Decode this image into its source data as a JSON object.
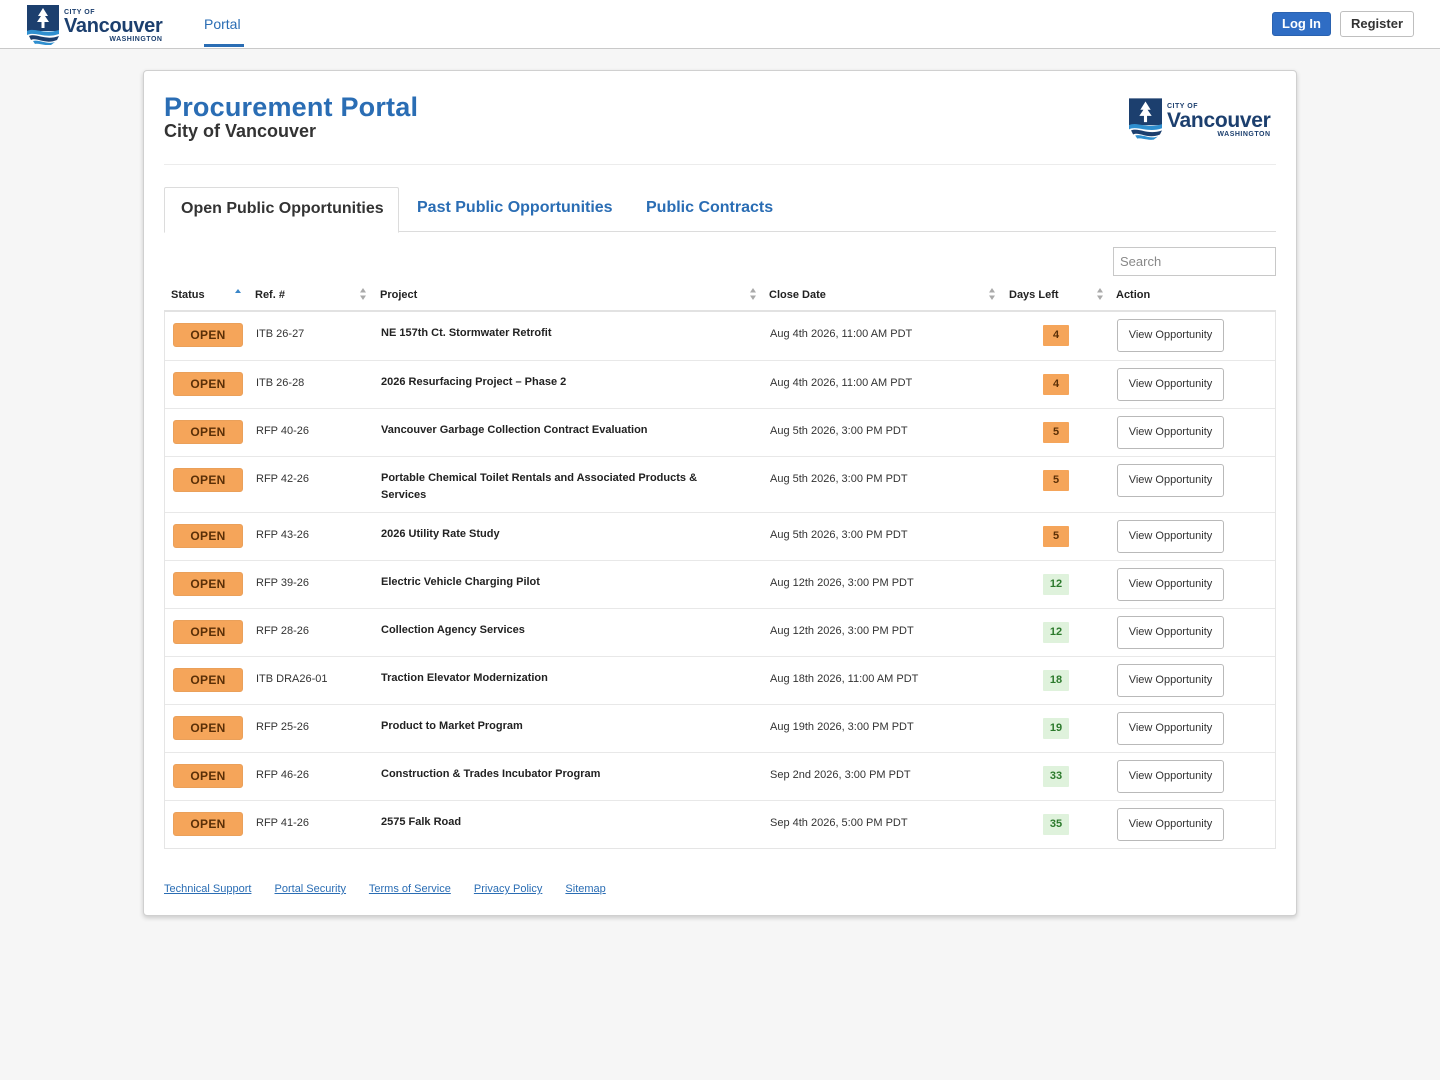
{
  "header": {
    "logo": {
      "city_of": "CITY OF",
      "name": "Vancouver",
      "state": "WASHINGTON"
    },
    "nav_portal": "Portal",
    "login": "Log In",
    "register": "Register"
  },
  "colors": {
    "brand_blue": "#2a6db4",
    "navy": "#1c3f6e",
    "open_orange": "#f5a55a",
    "days_ok_green": "#dff2dc"
  },
  "page": {
    "title": "Procurement Portal",
    "subtitle": "City of Vancouver",
    "logo": {
      "city_of": "CITY OF",
      "name": "Vancouver",
      "state": "WASHINGTON"
    }
  },
  "tabs": [
    "Open Public Opportunities",
    "Past Public Opportunities",
    "Public Contracts"
  ],
  "search": {
    "placeholder": "Search",
    "value": ""
  },
  "table": {
    "headers": {
      "status": "Status",
      "ref": "Ref. #",
      "project": "Project",
      "close": "Close Date",
      "days": "Days Left",
      "action": "Action"
    },
    "rows": [
      {
        "status": "OPEN",
        "ref": "ITB 26-27",
        "project": "NE 157th Ct. Stormwater Retrofit",
        "close": "Aug 4th 2026, 11:00 AM PDT",
        "days": "4",
        "days_level": "warn",
        "action": "View Opportunity"
      },
      {
        "status": "OPEN",
        "ref": "ITB 26-28",
        "project": "2026 Resurfacing Project – Phase 2",
        "close": "Aug 4th 2026, 11:00 AM PDT",
        "days": "4",
        "days_level": "warn",
        "action": "View Opportunity"
      },
      {
        "status": "OPEN",
        "ref": "RFP 40-26",
        "project": "Vancouver Garbage Collection Contract Evaluation",
        "close": "Aug 5th 2026, 3:00 PM PDT",
        "days": "5",
        "days_level": "warn",
        "action": "View Opportunity"
      },
      {
        "status": "OPEN",
        "ref": "RFP 42-26",
        "project": "Portable Chemical Toilet Rentals and Associated Products & Services",
        "close": "Aug 5th 2026, 3:00 PM PDT",
        "days": "5",
        "days_level": "warn",
        "action": "View Opportunity"
      },
      {
        "status": "OPEN",
        "ref": "RFP 43-26",
        "project": "2026 Utility Rate Study",
        "close": "Aug 5th 2026, 3:00 PM PDT",
        "days": "5",
        "days_level": "warn",
        "action": "View Opportunity"
      },
      {
        "status": "OPEN",
        "ref": "RFP 39-26",
        "project": "Electric Vehicle Charging Pilot",
        "close": "Aug 12th 2026, 3:00 PM PDT",
        "days": "12",
        "days_level": "ok",
        "action": "View Opportunity"
      },
      {
        "status": "OPEN",
        "ref": "RFP 28-26",
        "project": "Collection Agency Services",
        "close": "Aug 12th 2026, 3:00 PM PDT",
        "days": "12",
        "days_level": "ok",
        "action": "View Opportunity"
      },
      {
        "status": "OPEN",
        "ref": "ITB DRA26-01",
        "project": "Traction Elevator Modernization",
        "close": "Aug 18th 2026, 11:00 AM PDT",
        "days": "18",
        "days_level": "ok",
        "action": "View Opportunity"
      },
      {
        "status": "OPEN",
        "ref": "RFP 25-26",
        "project": "Product to Market Program",
        "close": "Aug 19th 2026, 3:00 PM PDT",
        "days": "19",
        "days_level": "ok",
        "action": "View Opportunity"
      },
      {
        "status": "OPEN",
        "ref": "RFP 46-26",
        "project": "Construction & Trades Incubator Program",
        "close": "Sep 2nd 2026, 3:00 PM PDT",
        "days": "33",
        "days_level": "ok",
        "action": "View Opportunity"
      },
      {
        "status": "OPEN",
        "ref": "RFP 41-26",
        "project": "2575 Falk Road",
        "close": "Sep 4th 2026, 5:00 PM PDT",
        "days": "35",
        "days_level": "ok",
        "action": "View Opportunity"
      }
    ]
  },
  "footer": [
    "Technical Support",
    "Portal Security",
    "Terms of Service",
    "Privacy Policy",
    "Sitemap"
  ]
}
